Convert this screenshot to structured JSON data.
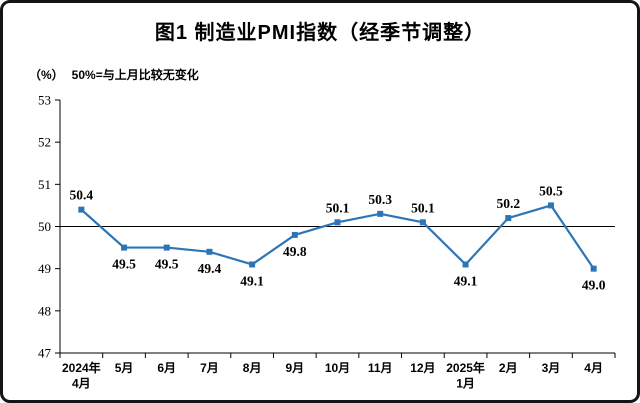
{
  "title": "图1  制造业PMI指数（经季节调整）",
  "axis": {
    "unit": "（%）",
    "note": "50%=与上月比较无变化"
  },
  "chart_data": {
    "type": "line",
    "title": "图1 制造业PMI指数（经季节调整）",
    "categories": [
      "2024年4月",
      "5月",
      "6月",
      "7月",
      "8月",
      "9月",
      "10月",
      "11月",
      "12月",
      "2025年1月",
      "2月",
      "3月",
      "4月"
    ],
    "category_lines": [
      [
        "2024年",
        "4月"
      ],
      [
        "5月"
      ],
      [
        "6月"
      ],
      [
        "7月"
      ],
      [
        "8月"
      ],
      [
        "9月"
      ],
      [
        "10月"
      ],
      [
        "11月"
      ],
      [
        "12月"
      ],
      [
        "2025年",
        "1月"
      ],
      [
        "2月"
      ],
      [
        "3月"
      ],
      [
        "4月"
      ]
    ],
    "series_name": "制造业PMI指数",
    "values": [
      50.4,
      49.5,
      49.5,
      49.4,
      49.1,
      49.8,
      50.1,
      50.3,
      50.1,
      49.1,
      50.2,
      50.5,
      49.0
    ],
    "label_positions": [
      "above",
      "below",
      "below",
      "below",
      "below",
      "below",
      "above",
      "above",
      "above",
      "below",
      "above",
      "above",
      "below"
    ],
    "xlabel": "",
    "ylabel": "%",
    "ylim": [
      47,
      53
    ],
    "yticks": [
      47,
      48,
      49,
      50,
      51,
      52,
      53
    ],
    "reference_line": 50,
    "grid": false,
    "legend": "none",
    "line_color": "#2E75B6",
    "marker": "square"
  }
}
